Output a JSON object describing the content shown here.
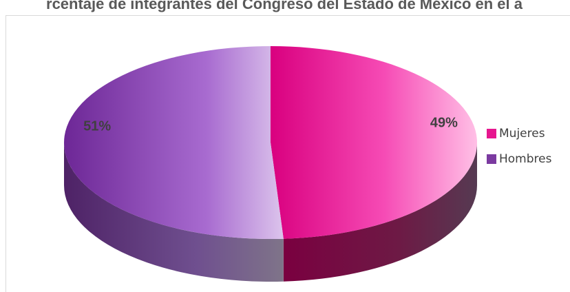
{
  "chart_data": {
    "type": "pie",
    "title": "rcentaje de integrantes del Congreso del Estado de México en el a",
    "categories": [
      "Mujeres",
      "Hombres"
    ],
    "values": [
      49,
      51
    ],
    "data_labels": [
      "49%",
      "51%"
    ],
    "colors": {
      "Mujeres": "#e6168f",
      "Hombres": "#7b3aa0"
    },
    "legend_position": "right",
    "style": "3d-perspective"
  }
}
